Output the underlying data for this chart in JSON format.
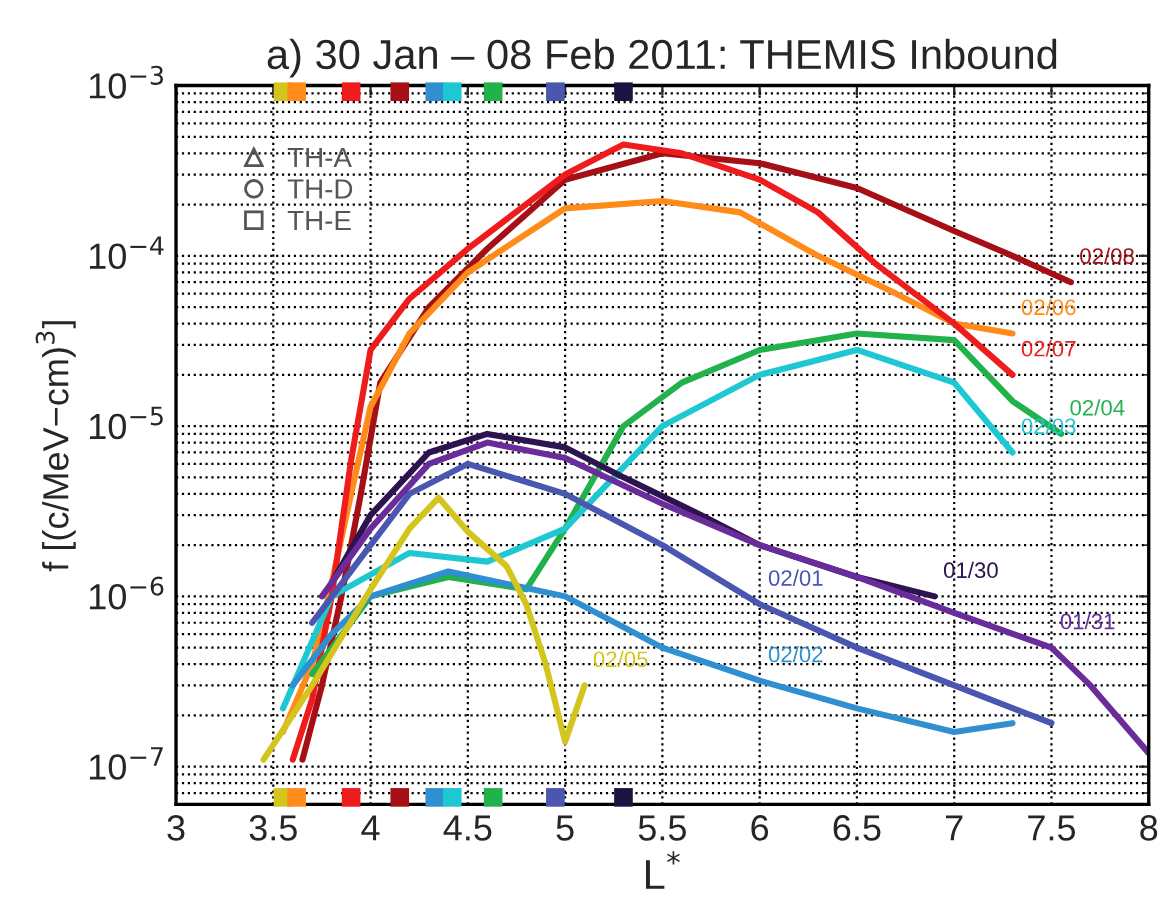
{
  "chart_data": {
    "type": "line",
    "title": "a) 30 Jan – 08 Feb 2011: THEMIS Inbound",
    "xlabel": "L$^{*}$",
    "ylabel": "f [(c/MeV−cm)$^{3}$]",
    "log": "y",
    "grid": true,
    "legend": "top left",
    "marker": "none",
    "xlim": [
      3,
      8
    ],
    "xticks": [
      3,
      3.5,
      4,
      4.5,
      5,
      5.5,
      6,
      6.5,
      7,
      7.5,
      8
    ],
    "ylim": [
      6e-08,
      0.001
    ],
    "yticks": [
      {
        "value": 1e-07,
        "label": "10$^{−7}$"
      },
      {
        "value": 1e-06,
        "label": "10$^{−6}$"
      },
      {
        "value": 1e-05,
        "label": "10$^{−5}$"
      },
      {
        "value": 0.0001,
        "label": "10$^{−4}$"
      },
      {
        "value": 0.001,
        "label": "10$^{−3}$"
      }
    ],
    "series": [
      {
        "color": "#a50f15",
        "x": [
          3.65,
          3.75,
          3.85,
          3.95,
          4.05,
          4.3,
          4.6,
          5.0,
          5.5,
          6.0,
          6.5,
          7.0,
          7.3,
          7.6
        ],
        "values": [
          1.1e-07,
          3e-07,
          1e-06,
          4e-06,
          1.8e-05,
          5e-05,
          0.00011,
          0.00028,
          0.0004,
          0.00035,
          0.00025,
          0.00014,
          0.0001,
          7e-05
        ]
      },
      {
        "color": "#ff8c1a",
        "x": [
          3.55,
          3.7,
          3.8,
          3.9,
          4.0,
          4.2,
          4.5,
          5.0,
          5.5,
          5.9,
          6.3,
          6.7,
          7.0,
          7.3
        ],
        "values": [
          1.6e-07,
          4e-07,
          1.2e-06,
          4e-06,
          1.3e-05,
          3.5e-05,
          8e-05,
          0.00019,
          0.00021,
          0.00018,
          0.0001,
          6e-05,
          4e-05,
          3.5e-05
        ]
      },
      {
        "color": "#ee1c1c",
        "x": [
          3.6,
          3.7,
          3.8,
          3.9,
          4.0,
          4.2,
          4.5,
          5.0,
          5.3,
          5.6,
          6.0,
          6.3,
          6.6,
          7.0,
          7.3
        ],
        "values": [
          1.1e-07,
          2.5e-07,
          1e-06,
          6.3e-06,
          2.8e-05,
          5.6e-05,
          0.00011,
          0.0003,
          0.00045,
          0.0004,
          0.00028,
          0.00018,
          8.9e-05,
          4e-05,
          2e-05
        ]
      },
      {
        "color": "#22b24c",
        "x": [
          3.7,
          4.0,
          4.4,
          4.8,
          5.0,
          5.3,
          5.6,
          6.0,
          6.5,
          7.0,
          7.3,
          7.55
        ],
        "values": [
          3.5e-07,
          1e-06,
          1.3e-06,
          1.1e-06,
          2.5e-06,
          1e-05,
          1.8e-05,
          2.8e-05,
          3.5e-05,
          3.2e-05,
          1.4e-05,
          9e-06
        ]
      },
      {
        "color": "#1ec8d2",
        "x": [
          3.55,
          3.8,
          4.2,
          4.6,
          5.0,
          5.5,
          6.0,
          6.5,
          7.0,
          7.3
        ],
        "values": [
          2.2e-07,
          1e-06,
          1.8e-06,
          1.6e-06,
          2.5e-06,
          1e-05,
          2e-05,
          2.8e-05,
          1.8e-05,
          7e-06
        ]
      },
      {
        "color": "#2d1450",
        "x": [
          3.8,
          4.0,
          4.3,
          4.6,
          5.0,
          5.3,
          5.7,
          6.0,
          6.5,
          6.9
        ],
        "values": [
          1.2e-06,
          3e-06,
          7e-06,
          9e-06,
          7.5e-06,
          5e-06,
          3e-06,
          2e-06,
          1.3e-06,
          1e-06
        ]
      },
      {
        "color": "#6a2c9a",
        "x": [
          3.75,
          4.0,
          4.3,
          4.6,
          5.0,
          5.5,
          6.0,
          6.5,
          7.0,
          7.5,
          7.7,
          8.0
        ],
        "values": [
          1e-06,
          2.5e-06,
          6e-06,
          8e-06,
          6.5e-06,
          3.5e-06,
          2e-06,
          1.3e-06,
          8e-07,
          5e-07,
          3e-07,
          1.2e-07
        ]
      },
      {
        "color": "#4a56b0",
        "x": [
          3.7,
          4.0,
          4.2,
          4.5,
          5.0,
          5.5,
          6.0,
          6.5,
          7.0,
          7.5
        ],
        "values": [
          7e-07,
          2e-06,
          4e-06,
          6e-06,
          4e-06,
          2e-06,
          9e-07,
          5e-07,
          3e-07,
          1.8e-07
        ]
      },
      {
        "color": "#2f8fd0",
        "x": [
          3.6,
          3.8,
          4.0,
          4.4,
          5.0,
          5.5,
          6.0,
          6.5,
          7.0,
          7.3
        ],
        "values": [
          3e-07,
          6e-07,
          1e-06,
          1.4e-06,
          1e-06,
          5e-07,
          3.2e-07,
          2.2e-07,
          1.6e-07,
          1.8e-07
        ]
      },
      {
        "color": "#d4c51e",
        "x": [
          3.45,
          3.7,
          4.0,
          4.2,
          4.35,
          4.5,
          4.7,
          4.8,
          4.9,
          5.0,
          5.1
        ],
        "values": [
          1.1e-07,
          3e-07,
          1.1e-06,
          2.5e-06,
          3.8e-06,
          2.4e-06,
          1.5e-06,
          9e-07,
          4e-07,
          1.4e-07,
          3e-07
        ]
      },
      {
        "type": "scatter",
        "marker": "square",
        "x": [
          3.55,
          3.62,
          3.9,
          4.15,
          4.33,
          4.42,
          4.63,
          4.95,
          5.3
        ],
        "values": [
          0.00092,
          0.00092,
          0.00092,
          0.00092,
          0.00092,
          0.00092,
          0.00092,
          0.00092,
          0.00092
        ],
        "colors": [
          "#d4c51e",
          "#ff8c1a",
          "#ee1c1c",
          "#a50f15",
          "#2f8fd0",
          "#1ec8d2",
          "#22b24c",
          "#4a56b0",
          "#1a1440"
        ]
      },
      {
        "type": "scatter",
        "marker": "square",
        "x": [
          3.55,
          3.62,
          3.9,
          4.15,
          4.33,
          4.42,
          4.63,
          4.95,
          5.3
        ],
        "values": [
          6.6e-08,
          6.6e-08,
          6.6e-08,
          6.6e-08,
          6.6e-08,
          6.6e-08,
          6.6e-08,
          6.6e-08,
          6.6e-08
        ],
        "colors": [
          "#d4c51e",
          "#ff8c1a",
          "#ee1c1c",
          "#a50f15",
          "#2f8fd0",
          "#1ec8d2",
          "#22b24c",
          "#4a56b0",
          "#1a1440"
        ]
      },
      {
        "name": "TH-A",
        "color": "#555555",
        "marker": "triangle"
      },
      {
        "name": "TH-D",
        "color": "#555555",
        "marker": "circle"
      },
      {
        "name": "TH-E",
        "color": "#555555",
        "marker": "square"
      }
    ],
    "annotations": [
      {
        "text": "02/08",
        "x": 7.6,
        "y": 7e-05
      },
      {
        "text": "02/06",
        "x": 7.3,
        "y": 3.5e-05
      },
      {
        "text": "02/07",
        "x": 7.3,
        "y": 2e-05
      },
      {
        "text": "02/04",
        "x": 7.55,
        "y": 9e-06
      },
      {
        "text": "02/03",
        "x": 7.3,
        "y": 7e-06
      },
      {
        "text": "01/30",
        "x": 6.9,
        "y": 1e-06
      },
      {
        "text": "01/31",
        "x": 7.5,
        "y": 5e-07
      },
      {
        "text": "02/01",
        "x": 6.0,
        "y": 9e-07
      },
      {
        "text": "02/02",
        "x": 6.0,
        "y": 3.2e-07
      },
      {
        "text": "02/05",
        "x": 5.1,
        "y": 3e-07
      }
    ]
  }
}
